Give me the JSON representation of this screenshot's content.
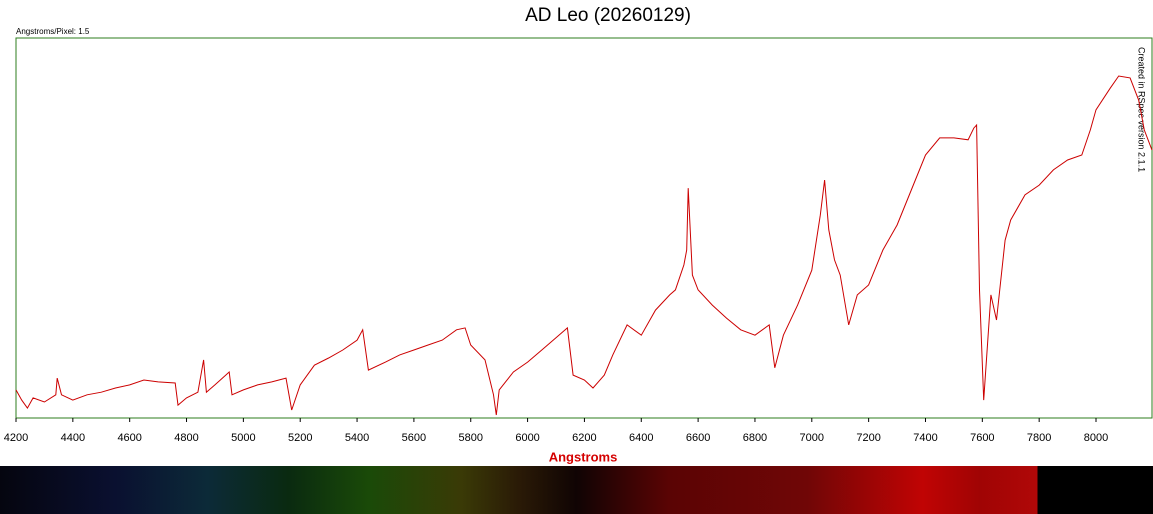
{
  "chart_data": {
    "type": "line",
    "title": "AD Leo (20260129)",
    "subtitle": "Angstroms/Pixel: 1.5",
    "x_label": "Angstroms",
    "annotation": "Created in RSpec version 2.1.1",
    "xlim": [
      4200,
      8197
    ],
    "ylim": [
      0,
      1
    ],
    "xticks": [
      4200,
      4400,
      4600,
      4800,
      5000,
      5200,
      5400,
      5600,
      5800,
      6000,
      6200,
      6400,
      6600,
      6800,
      7000,
      7200,
      7400,
      7600,
      7800,
      8000
    ],
    "series": [
      {
        "name": "AD Leo",
        "color": "#cc0000",
        "x": [
          4200,
          4220,
          4240,
          4260,
          4300,
          4340,
          4345,
          4360,
          4400,
          4450,
          4500,
          4550,
          4600,
          4650,
          4700,
          4760,
          4770,
          4800,
          4840,
          4860,
          4870,
          4900,
          4950,
          4960,
          5000,
          5050,
          5100,
          5150,
          5170,
          5200,
          5250,
          5300,
          5350,
          5400,
          5420,
          5440,
          5500,
          5550,
          5600,
          5650,
          5700,
          5750,
          5780,
          5800,
          5850,
          5880,
          5890,
          5900,
          5950,
          6000,
          6050,
          6100,
          6140,
          6160,
          6200,
          6230,
          6270,
          6300,
          6350,
          6400,
          6450,
          6500,
          6520,
          6550,
          6560,
          6565,
          6580,
          6600,
          6650,
          6700,
          6750,
          6800,
          6850,
          6870,
          6900,
          6950,
          7000,
          7030,
          7045,
          7060,
          7080,
          7100,
          7130,
          7160,
          7200,
          7250,
          7300,
          7350,
          7400,
          7450,
          7500,
          7550,
          7570,
          7580,
          7590,
          7605,
          7630,
          7650,
          7680,
          7700,
          7750,
          7800,
          7850,
          7900,
          7950,
          7980,
          8000,
          8050,
          8080,
          8120,
          8150,
          8170,
          8197
        ],
        "values": [
          0.074,
          0.047,
          0.026,
          0.053,
          0.042,
          0.061,
          0.105,
          0.061,
          0.047,
          0.061,
          0.068,
          0.079,
          0.087,
          0.1,
          0.095,
          0.092,
          0.034,
          0.053,
          0.068,
          0.153,
          0.068,
          0.087,
          0.121,
          0.061,
          0.074,
          0.087,
          0.095,
          0.105,
          0.021,
          0.087,
          0.139,
          0.158,
          0.179,
          0.205,
          0.232,
          0.126,
          0.147,
          0.166,
          0.179,
          0.192,
          0.205,
          0.232,
          0.237,
          0.192,
          0.153,
          0.061,
          0.008,
          0.074,
          0.121,
          0.147,
          0.179,
          0.211,
          0.237,
          0.113,
          0.1,
          0.079,
          0.113,
          0.166,
          0.245,
          0.218,
          0.284,
          0.324,
          0.337,
          0.403,
          0.442,
          0.605,
          0.376,
          0.337,
          0.297,
          0.263,
          0.232,
          0.218,
          0.245,
          0.132,
          0.218,
          0.297,
          0.389,
          0.534,
          0.626,
          0.495,
          0.416,
          0.376,
          0.245,
          0.324,
          0.35,
          0.442,
          0.508,
          0.6,
          0.692,
          0.737,
          0.737,
          0.732,
          0.763,
          0.771,
          0.337,
          0.047,
          0.324,
          0.258,
          0.468,
          0.521,
          0.587,
          0.613,
          0.653,
          0.679,
          0.692,
          0.758,
          0.811,
          0.868,
          0.9,
          0.895,
          0.837,
          0.758,
          0.705
        ]
      }
    ]
  }
}
